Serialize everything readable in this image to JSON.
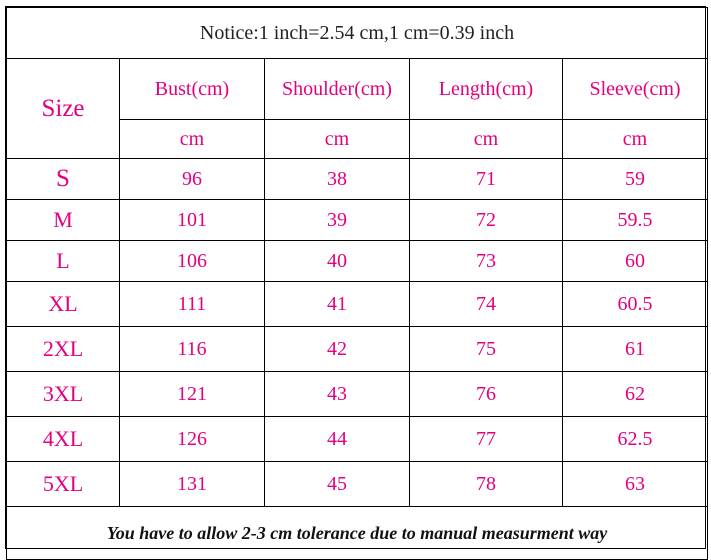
{
  "notice": "Notice:1 inch=2.54 cm,1 cm=0.39 inch",
  "size_header": "Size",
  "columns": [
    "Bust(cm)",
    "Shoulder(cm)",
    "Length(cm)",
    "Sleeve(cm)"
  ],
  "units": [
    "cm",
    "cm",
    "cm",
    "cm"
  ],
  "rows": [
    {
      "size": "S",
      "bust": "96",
      "shoulder": "38",
      "length": "71",
      "sleeve": "59"
    },
    {
      "size": "M",
      "bust": "101",
      "shoulder": "39",
      "length": "72",
      "sleeve": "59.5"
    },
    {
      "size": "L",
      "bust": "106",
      "shoulder": "40",
      "length": "73",
      "sleeve": "60"
    },
    {
      "size": "XL",
      "bust": "111",
      "shoulder": "41",
      "length": "74",
      "sleeve": "60.5"
    },
    {
      "size": "2XL",
      "bust": "116",
      "shoulder": "42",
      "length": "75",
      "sleeve": "61"
    },
    {
      "size": "3XL",
      "bust": "121",
      "shoulder": "43",
      "length": "76",
      "sleeve": "62"
    },
    {
      "size": "4XL",
      "bust": "126",
      "shoulder": "44",
      "length": "77",
      "sleeve": "62.5"
    },
    {
      "size": "5XL",
      "bust": "131",
      "shoulder": "45",
      "length": "78",
      "sleeve": "63"
    }
  ],
  "footer": "You have to allow 2-3 cm tolerance due to manual measurment way",
  "colors": {
    "accent": "#e4007f",
    "text": "#222222",
    "border": "#000000"
  }
}
